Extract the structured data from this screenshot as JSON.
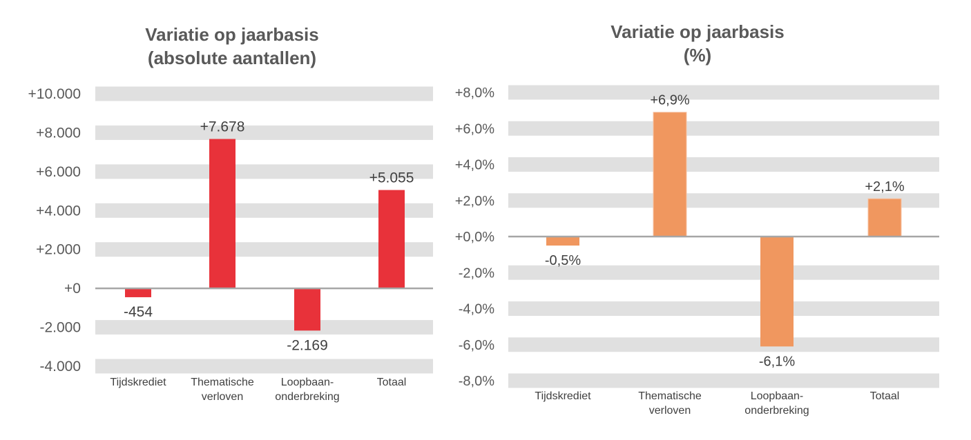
{
  "chart_data": [
    {
      "type": "bar",
      "title": [
        "Variatie op jaarbasis",
        "(absolute aantallen)"
      ],
      "categories": [
        [
          "Tijdskrediet"
        ],
        [
          "Thematische",
          "verloven"
        ],
        [
          "Loopbaan-",
          "onderbreking"
        ],
        [
          "Totaal"
        ]
      ],
      "values": [
        -454,
        7678,
        -2169,
        5055
      ],
      "data_labels": [
        "-454",
        "+7.678",
        "-2.169",
        "+5.055"
      ],
      "ylim": [
        -4000,
        10000
      ],
      "yticks": [
        10000,
        8000,
        6000,
        4000,
        2000,
        0,
        -2000,
        -4000
      ],
      "ytick_labels": [
        "+10.000",
        "+8.000",
        "+6.000",
        "+4.000",
        "+2.000",
        "+0",
        "-2.000",
        "-4.000"
      ],
      "grid": "banded",
      "color": "#E8323A"
    },
    {
      "type": "bar",
      "title": [
        "Variatie op jaarbasis",
        "(%)"
      ],
      "categories": [
        [
          "Tijdskrediet"
        ],
        [
          "Thematische",
          "verloven"
        ],
        [
          "Loopbaan-",
          "onderbreking"
        ],
        [
          "Totaal"
        ]
      ],
      "values": [
        -0.5,
        6.9,
        -6.1,
        2.1
      ],
      "data_labels": [
        "-0,5%",
        "+6,9%",
        "-6,1%",
        "+2,1%"
      ],
      "ylim": [
        -8,
        8
      ],
      "yticks": [
        8,
        6,
        4,
        2,
        0,
        -2,
        -4,
        -6,
        -8
      ],
      "ytick_labels": [
        "+8,0%",
        "+6,0%",
        "+4,0%",
        "+2,0%",
        "+0,0%",
        "-2,0%",
        "-4,0%",
        "-6,0%",
        "-8,0%"
      ],
      "grid": "banded",
      "color": "#F0975F"
    }
  ]
}
